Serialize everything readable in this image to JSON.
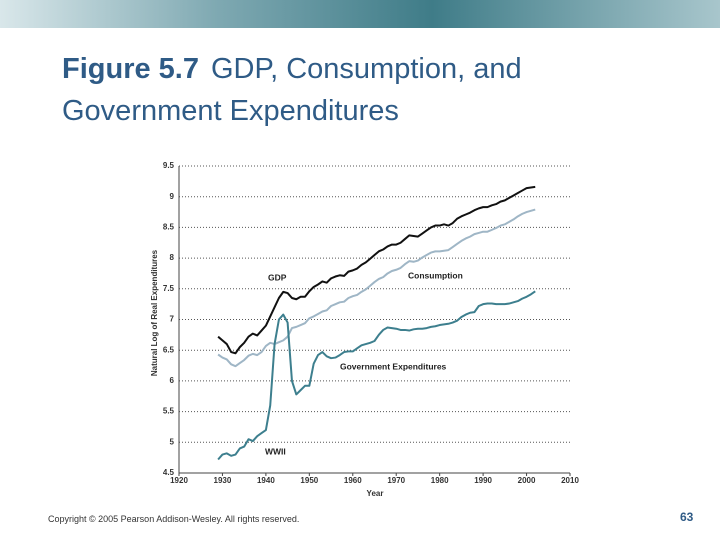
{
  "chart_data": {
    "type": "line",
    "title_prefix": "Figure 5.7",
    "title": "GDP, Consumption, and Government Expenditures",
    "ylabel": "Natural Log of Real Expenditures",
    "xlabel": "Year",
    "annotations": [
      "WWII"
    ],
    "x": [
      1929,
      1930,
      1931,
      1932,
      1933,
      1934,
      1935,
      1936,
      1937,
      1938,
      1939,
      1940,
      1941,
      1942,
      1943,
      1944,
      1945,
      1946,
      1947,
      1948,
      1949,
      1950,
      1951,
      1952,
      1953,
      1954,
      1955,
      1956,
      1957,
      1958,
      1959,
      1960,
      1961,
      1962,
      1963,
      1964,
      1965,
      1966,
      1967,
      1968,
      1969,
      1970,
      1971,
      1972,
      1973,
      1974,
      1975,
      1976,
      1977,
      1978,
      1979,
      1980,
      1981,
      1982,
      1983,
      1984,
      1985,
      1986,
      1987,
      1988,
      1989,
      1990,
      1991,
      1992,
      1993,
      1994,
      1995,
      1996,
      1997,
      1998,
      1999,
      2000,
      2001,
      2002
    ],
    "series": [
      {
        "name": "GDP",
        "color": "#111111",
        "values": [
          6.72,
          6.66,
          6.6,
          6.47,
          6.45,
          6.55,
          6.62,
          6.72,
          6.77,
          6.74,
          6.82,
          6.9,
          7.05,
          7.2,
          7.35,
          7.45,
          7.43,
          7.35,
          7.33,
          7.37,
          7.37,
          7.46,
          7.53,
          7.57,
          7.62,
          7.6,
          7.67,
          7.7,
          7.72,
          7.71,
          7.78,
          7.8,
          7.83,
          7.89,
          7.93,
          7.99,
          8.05,
          8.11,
          8.14,
          8.19,
          8.22,
          8.22,
          8.25,
          8.31,
          8.37,
          8.36,
          8.35,
          8.4,
          8.45,
          8.5,
          8.53,
          8.53,
          8.55,
          8.53,
          8.57,
          8.64,
          8.68,
          8.71,
          8.74,
          8.78,
          8.81,
          8.83,
          8.83,
          8.86,
          8.88,
          8.92,
          8.94,
          8.98,
          9.02,
          9.06,
          9.1,
          9.14,
          9.15,
          9.16
        ]
      },
      {
        "name": "Consumption",
        "color": "#9fb6c6",
        "values": [
          6.43,
          6.38,
          6.35,
          6.27,
          6.24,
          6.29,
          6.34,
          6.41,
          6.44,
          6.42,
          6.47,
          6.57,
          6.62,
          6.6,
          6.63,
          6.66,
          6.72,
          6.86,
          6.88,
          6.91,
          6.94,
          7.02,
          7.05,
          7.09,
          7.13,
          7.15,
          7.22,
          7.25,
          7.28,
          7.29,
          7.35,
          7.38,
          7.4,
          7.45,
          7.49,
          7.55,
          7.61,
          7.66,
          7.69,
          7.75,
          7.79,
          7.81,
          7.84,
          7.9,
          7.95,
          7.94,
          7.96,
          8.01,
          8.05,
          8.09,
          8.11,
          8.11,
          8.12,
          8.13,
          8.18,
          8.23,
          8.28,
          8.32,
          8.35,
          8.39,
          8.41,
          8.43,
          8.43,
          8.46,
          8.49,
          8.53,
          8.55,
          8.59,
          8.63,
          8.68,
          8.72,
          8.75,
          8.77,
          8.79
        ]
      },
      {
        "name": "Government Expenditures",
        "color": "#3d7f8e",
        "values": [
          4.72,
          4.8,
          4.82,
          4.78,
          4.8,
          4.9,
          4.93,
          5.05,
          5.02,
          5.1,
          5.15,
          5.2,
          5.6,
          6.6,
          7.0,
          7.08,
          6.95,
          6.0,
          5.78,
          5.85,
          5.92,
          5.92,
          6.28,
          6.42,
          6.47,
          6.4,
          6.37,
          6.38,
          6.42,
          6.47,
          6.48,
          6.48,
          6.53,
          6.58,
          6.6,
          6.62,
          6.65,
          6.75,
          6.83,
          6.87,
          6.86,
          6.85,
          6.83,
          6.83,
          6.82,
          6.84,
          6.85,
          6.85,
          6.86,
          6.88,
          6.89,
          6.91,
          6.92,
          6.93,
          6.95,
          6.98,
          7.04,
          7.08,
          7.11,
          7.12,
          7.22,
          7.25,
          7.26,
          7.26,
          7.25,
          7.25,
          7.25,
          7.26,
          7.28,
          7.3,
          7.34,
          7.37,
          7.41,
          7.46
        ]
      }
    ],
    "xlim": [
      1920,
      2010
    ],
    "xticks": [
      1920,
      1930,
      1940,
      1950,
      1960,
      1970,
      1980,
      1990,
      2000,
      2010
    ],
    "ylim": [
      4.5,
      9.5
    ],
    "yticks": [
      4.5,
      5,
      5.5,
      6,
      6.5,
      7,
      7.5,
      8,
      8.5,
      9,
      9.5
    ],
    "grid": true
  },
  "footer": {
    "copyright": "Copyright © 2005 Pearson Addison-Wesley. All rights reserved.",
    "page_number": "63"
  }
}
